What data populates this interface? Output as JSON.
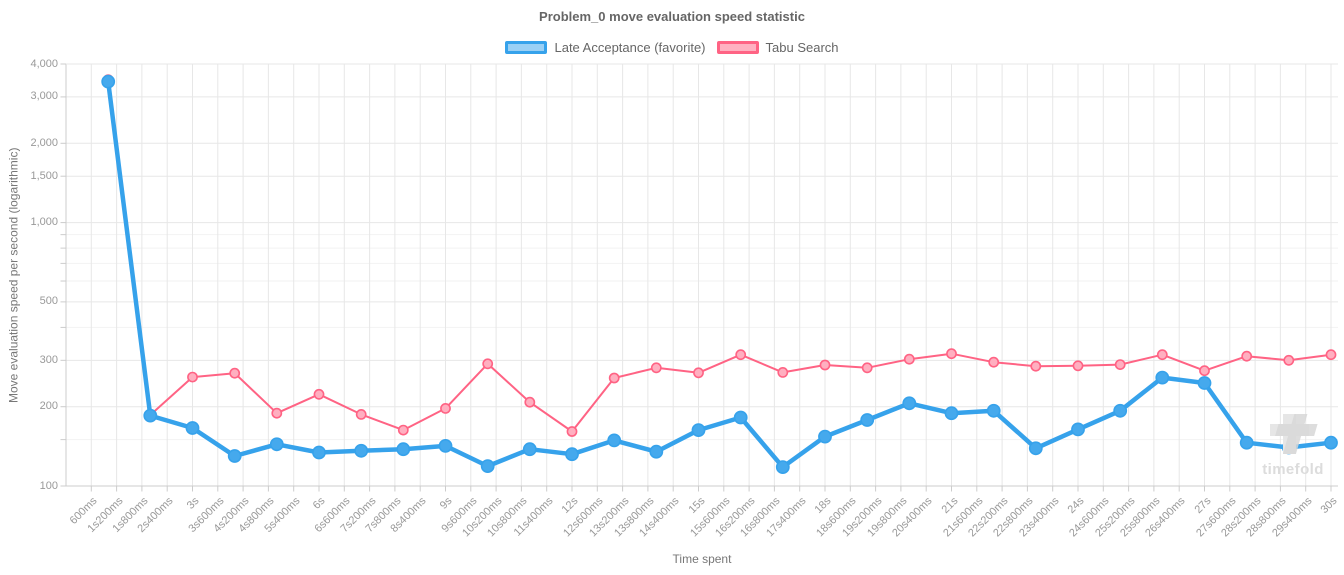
{
  "title": "Problem_0 move evaluation speed statistic",
  "legend": {
    "items": [
      {
        "label": "Late Acceptance (favorite)",
        "color": "#36a2eb",
        "fill": "#9ad0f5"
      },
      {
        "label": "Tabu Search",
        "color": "#ff6384",
        "fill": "#ffb1c1"
      }
    ]
  },
  "watermark": {
    "text": "timefold"
  },
  "style": {
    "grid_color": "#e7e7e7",
    "minor_grid_color": "#f2f2f2",
    "axis_line_color": "#cccccc",
    "tick_text_color": "#999999",
    "title_color": "#666666",
    "axis_title_color": "#777777",
    "watermark_color": "#dcdcdc",
    "blue_line": "#36a2eb",
    "blue_point_fill": "#45a9ed",
    "pink_line": "#ff6384",
    "pink_point_fill": "#ffafc0"
  },
  "chart_data": {
    "type": "line",
    "title": "Problem_0 move evaluation speed statistic",
    "xlabel": "Time spent",
    "ylabel": "Move evaluation speed per second (logarithmic)",
    "y_scale": "logarithmic",
    "ylim": [
      100,
      4000
    ],
    "x_range_ms": [
      0,
      30000
    ],
    "x_tick_interval_ms": 600,
    "grid": true,
    "legend_position": "top",
    "x_tick_labels": [
      "600ms",
      "1s200ms",
      "1s800ms",
      "2s400ms",
      "3s",
      "3s600ms",
      "4s200ms",
      "4s800ms",
      "5s400ms",
      "6s",
      "6s600ms",
      "7s200ms",
      "7s800ms",
      "8s400ms",
      "9s",
      "9s600ms",
      "10s200ms",
      "10s800ms",
      "11s400ms",
      "12s",
      "12s600ms",
      "13s200ms",
      "13s800ms",
      "14s400ms",
      "15s",
      "15s600ms",
      "16s200ms",
      "16s800ms",
      "17s400ms",
      "18s",
      "18s600ms",
      "19s200ms",
      "19s800ms",
      "20s400ms",
      "21s",
      "21s600ms",
      "22s200ms",
      "22s800ms",
      "23s400ms",
      "24s",
      "24s600ms",
      "25s200ms",
      "25s800ms",
      "26s400ms",
      "27s",
      "27s600ms",
      "28s200ms",
      "28s800ms",
      "29s400ms",
      "30s"
    ],
    "y_major_ticks": [
      {
        "value": 4000,
        "label": "4,000"
      },
      {
        "value": 3000,
        "label": "3,000"
      },
      {
        "value": 2000,
        "label": "2,000"
      },
      {
        "value": 1500,
        "label": "1,500"
      },
      {
        "value": 1000,
        "label": "1,000"
      },
      {
        "value": 500,
        "label": "500"
      },
      {
        "value": 300,
        "label": "300"
      },
      {
        "value": 200,
        "label": "200"
      },
      {
        "value": 100,
        "label": "100"
      }
    ],
    "y_minor_gridlines": [
      900,
      800,
      700,
      600,
      400,
      150
    ],
    "x_seconds": [
      1,
      2,
      3,
      4,
      5,
      6,
      7,
      8,
      9,
      10,
      11,
      12,
      13,
      14,
      15,
      16,
      17,
      18,
      19,
      20,
      21,
      22,
      23,
      24,
      25,
      26,
      27,
      28,
      29,
      30
    ],
    "series": [
      {
        "name": "Late Acceptance (favorite)",
        "color": "#36a2eb",
        "values": [
          3430,
          185,
          166,
          130,
          144,
          134,
          136,
          138,
          142,
          119,
          138,
          132,
          149,
          135,
          163,
          182,
          118,
          154,
          178,
          206,
          189,
          193,
          139,
          164,
          193,
          258,
          246,
          146,
          140,
          146
        ]
      },
      {
        "name": "Tabu Search",
        "color": "#ff6384",
        "values": [
          3490,
          186,
          259,
          268,
          189,
          223,
          187,
          163,
          197,
          291,
          208,
          161,
          257,
          281,
          269,
          315,
          270,
          288,
          281,
          303,
          318,
          295,
          285,
          286,
          289,
          315,
          274,
          311,
          300,
          315
        ]
      }
    ]
  }
}
